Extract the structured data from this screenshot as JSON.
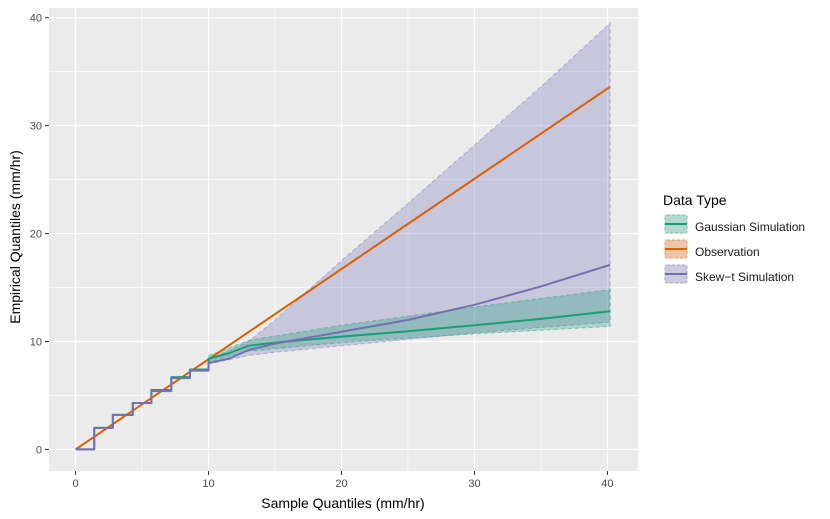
{
  "chart_data": {
    "type": "line",
    "title": "",
    "xlabel": "Sample Quantiles (mm/hr)",
    "ylabel": "Empirical Quantiles (mm/hr)",
    "xlim": [
      -2,
      42.3
    ],
    "ylim": [
      -2,
      40.9
    ],
    "x_ticks": [
      0,
      10,
      20,
      30,
      40
    ],
    "y_ticks": [
      0,
      10,
      20,
      30,
      40
    ],
    "x_tick_labels": [
      "0",
      "10",
      "20",
      "30",
      "40"
    ],
    "y_tick_labels": [
      "0",
      "10",
      "20",
      "30",
      "40"
    ],
    "legend": {
      "title": "Data Type",
      "placement": "right",
      "entries": [
        "Gaussian Simulation",
        "Observation",
        "Skew−t Simulation"
      ]
    },
    "colors": {
      "gaussian": "#1b9e77",
      "observation": "#d95f02",
      "skewt": "#7570b3",
      "panel": "#ebebeb",
      "grid": "#ffffff"
    },
    "series": [
      {
        "name": "Observation",
        "color": "#d95f02",
        "x": [
          0,
          40.2
        ],
        "y": [
          0,
          33.6
        ],
        "band_lower": [],
        "band_upper": []
      },
      {
        "name": "Gaussian Simulation",
        "color": "#1b9e77",
        "x": [
          0,
          1.4,
          1.4,
          2.8,
          2.8,
          4.3,
          4.3,
          5.7,
          5.7,
          7.2,
          7.2,
          8.6,
          8.6,
          10.0,
          10.0,
          11.5,
          13.0,
          15.0,
          20.0,
          25.0,
          30.0,
          35.0,
          40.2
        ],
        "y": [
          0,
          0,
          2.0,
          2.0,
          3.2,
          3.2,
          4.3,
          4.3,
          5.5,
          5.5,
          6.7,
          6.7,
          7.4,
          7.4,
          8.4,
          8.9,
          9.6,
          9.9,
          10.45,
          10.95,
          11.5,
          12.1,
          12.8
        ],
        "band_x": [
          10.0,
          13.0,
          20.0,
          30.0,
          40.2
        ],
        "band_lower": [
          8.1,
          9.1,
          9.9,
          10.7,
          11.4
        ],
        "band_upper": [
          8.7,
          10.1,
          11.5,
          13.2,
          14.8
        ]
      },
      {
        "name": "Skew−t Simulation",
        "color": "#7570b3",
        "x": [
          0,
          1.4,
          1.4,
          2.8,
          2.8,
          4.3,
          4.3,
          5.7,
          5.7,
          7.2,
          7.2,
          8.6,
          8.6,
          10.0,
          10.0,
          11.5,
          13.0,
          15.0,
          20.0,
          25.0,
          30.0,
          35.0,
          40.2
        ],
        "y": [
          0,
          0,
          2.0,
          2.0,
          3.2,
          3.2,
          4.3,
          4.3,
          5.4,
          5.4,
          6.6,
          6.6,
          7.3,
          7.3,
          8.0,
          8.4,
          9.2,
          9.8,
          10.9,
          12.0,
          13.4,
          15.1,
          17.1
        ],
        "band_x": [
          10.0,
          13.0,
          15.0,
          20.0,
          25.0,
          30.0,
          35.0,
          40.2
        ],
        "band_lower": [
          7.9,
          8.7,
          9.0,
          9.6,
          10.2,
          10.8,
          11.3,
          11.8
        ],
        "band_upper": [
          8.3,
          10.0,
          12.0,
          17.5,
          22.8,
          28.2,
          33.6,
          39.5
        ]
      }
    ]
  }
}
